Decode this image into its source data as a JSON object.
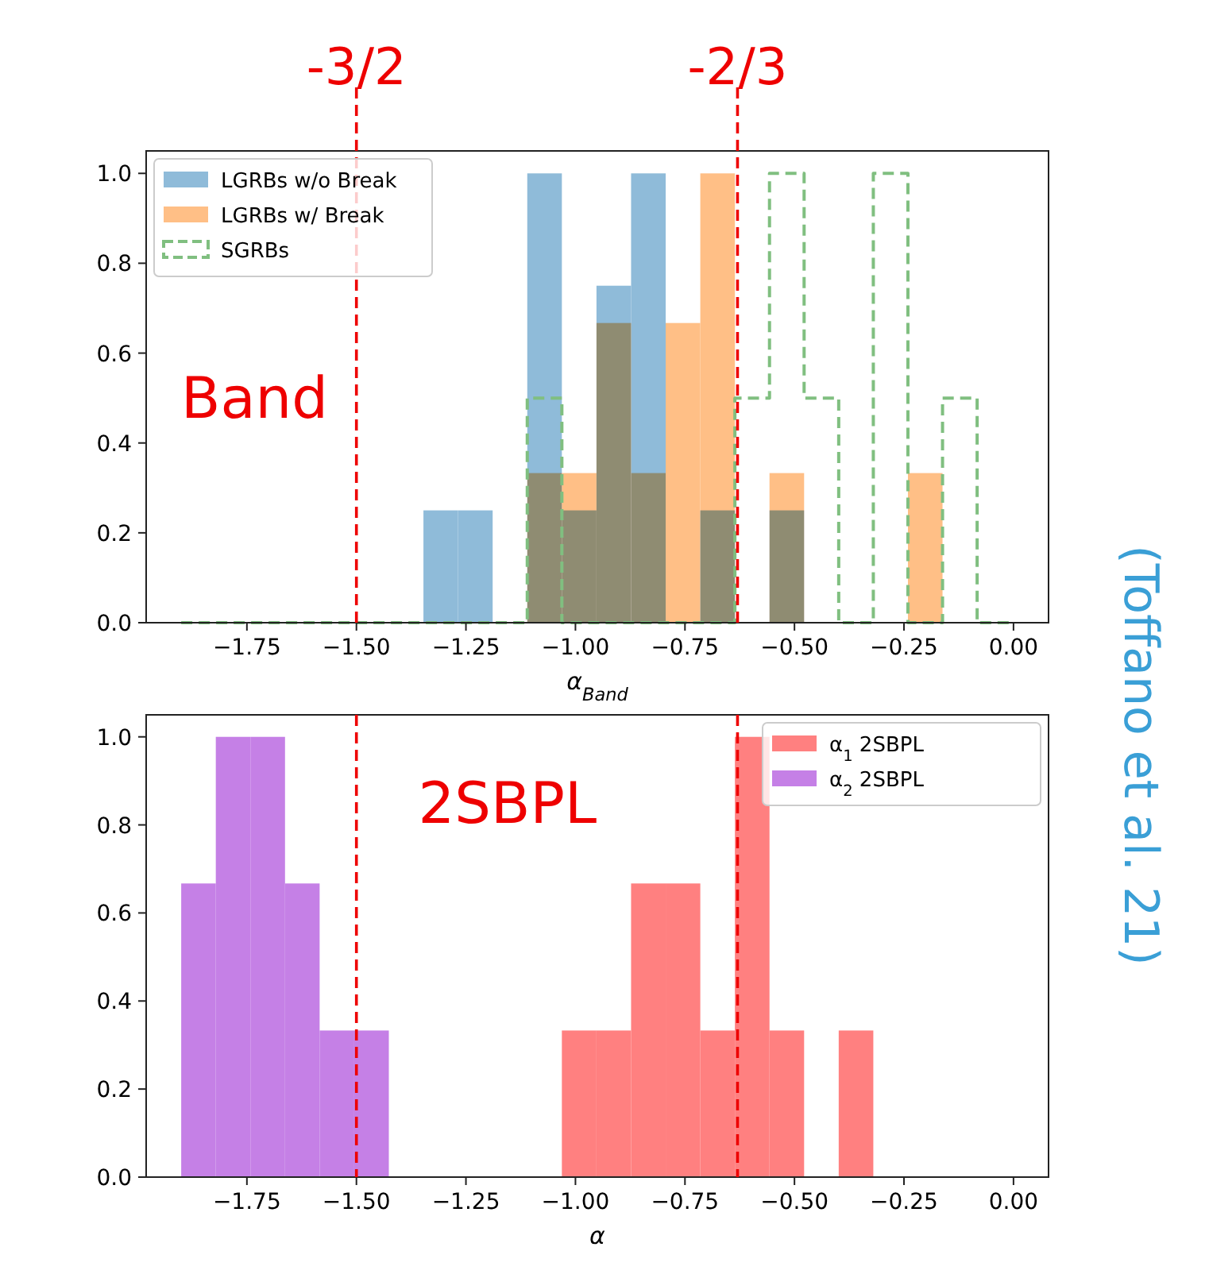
{
  "chart_data": [
    {
      "type": "histogram",
      "xlabel": "α$_{Band}$",
      "bins": [
        -1.9,
        -1.821,
        -1.742,
        -1.663,
        -1.584,
        -1.505,
        -1.426,
        -1.347,
        -1.268,
        -1.189,
        -1.11,
        -1.031,
        -0.952,
        -0.873,
        -0.794,
        -0.715,
        -0.636,
        -0.557,
        -0.478,
        -0.399,
        -0.32,
        -0.241,
        -0.162,
        -0.083,
        -0.004
      ],
      "series": [
        {
          "name": "LGRBs w/o Break",
          "color": "#8fbbd9",
          "values": [
            0,
            0,
            0,
            0,
            0,
            0,
            0,
            0.25,
            0.25,
            0,
            1.0,
            0.25,
            0.75,
            1.0,
            0,
            0.25,
            0,
            0.25,
            0,
            0,
            0,
            0,
            0,
            0
          ]
        },
        {
          "name": "LGRBs w/ Break",
          "color": "#ffbf86",
          "values": [
            0,
            0,
            0,
            0,
            0,
            0,
            0,
            0,
            0,
            0,
            0.333,
            0.333,
            0.667,
            0.333,
            0.667,
            1.0,
            0,
            0.333,
            0,
            0,
            0,
            0.333,
            0,
            0
          ]
        },
        {
          "name": "SGRBs",
          "color": "#80bf80",
          "line_style": "dashed",
          "values": [
            0,
            0,
            0,
            0,
            0,
            0,
            0,
            0,
            0,
            0,
            0.5,
            0,
            0,
            0,
            0,
            0,
            0.5,
            1.0,
            0.5,
            0,
            1.0,
            0,
            0.5,
            0
          ]
        }
      ],
      "xlim": [
        -1.98,
        0.08
      ],
      "ylim": [
        0,
        1.05
      ],
      "xticks": [
        {
          "value": -1.75,
          "label": "−1.75"
        },
        {
          "value": -1.5,
          "label": "−1.50"
        },
        {
          "value": -1.25,
          "label": "−1.25"
        },
        {
          "value": -1.0,
          "label": "−1.00"
        },
        {
          "value": -0.75,
          "label": "−0.75"
        },
        {
          "value": -0.5,
          "label": "−0.50"
        },
        {
          "value": -0.25,
          "label": "−0.25"
        },
        {
          "value": 0,
          "label": "0.00"
        }
      ],
      "yticks": [
        {
          "value": 0,
          "label": "0.0"
        },
        {
          "value": 0.2,
          "label": "0.2"
        },
        {
          "value": 0.4,
          "label": "0.4"
        },
        {
          "value": 0.6,
          "label": "0.6"
        },
        {
          "value": 0.8,
          "label": "0.8"
        },
        {
          "value": 1.0,
          "label": "1.0"
        }
      ],
      "ref_lines": [
        {
          "axis": "x",
          "value": -1.5,
          "color": "#ee0000",
          "line_style": "dashed"
        },
        {
          "axis": "x",
          "value": -0.63,
          "color": "#ee0000",
          "line_style": "dashed"
        }
      ],
      "annotations": [
        "Band",
        "-3/2",
        "-2/3"
      ],
      "legend": "top left",
      "grid": false
    },
    {
      "type": "histogram",
      "xlabel": "α",
      "bins": [
        -1.9,
        -1.821,
        -1.742,
        -1.663,
        -1.584,
        -1.505,
        -1.426,
        -1.347,
        -1.268,
        -1.189,
        -1.11,
        -1.031,
        -0.952,
        -0.873,
        -0.794,
        -0.715,
        -0.636,
        -0.557,
        -0.478,
        -0.399,
        -0.32,
        -0.241,
        -0.162,
        -0.083,
        -0.004
      ],
      "series": [
        {
          "name": "α$_{1}$ 2SBPL",
          "color": "#ff8080",
          "values": [
            0,
            0,
            0,
            0,
            0,
            0,
            0,
            0,
            0,
            0,
            0,
            0.333,
            0.333,
            0.667,
            0.667,
            0.333,
            1.0,
            0.333,
            0,
            0.333,
            0,
            0,
            0,
            0
          ]
        },
        {
          "name": "α$_{2}$ 2SBPL",
          "color": "#c580e6",
          "values": [
            0.667,
            1.0,
            1.0,
            0.667,
            0.333,
            0.333,
            0,
            0,
            0,
            0,
            0,
            0,
            0,
            0,
            0,
            0,
            0,
            0,
            0,
            0,
            0,
            0,
            0,
            0
          ]
        }
      ],
      "xlim": [
        -1.98,
        0.08
      ],
      "ylim": [
        0,
        1.05
      ],
      "xticks": [
        {
          "value": -1.75,
          "label": "−1.75"
        },
        {
          "value": -1.5,
          "label": "−1.50"
        },
        {
          "value": -1.25,
          "label": "−1.25"
        },
        {
          "value": -1.0,
          "label": "−1.00"
        },
        {
          "value": -0.75,
          "label": "−0.75"
        },
        {
          "value": -0.5,
          "label": "−0.50"
        },
        {
          "value": -0.25,
          "label": "−0.25"
        },
        {
          "value": 0,
          "label": "0.00"
        }
      ],
      "yticks": [
        {
          "value": 0,
          "label": "0.0"
        },
        {
          "value": 0.2,
          "label": "0.2"
        },
        {
          "value": 0.4,
          "label": "0.4"
        },
        {
          "value": 0.6,
          "label": "0.6"
        },
        {
          "value": 0.8,
          "label": "0.8"
        },
        {
          "value": 1.0,
          "label": "1.0"
        }
      ],
      "ref_lines": [
        {
          "axis": "x",
          "value": -1.5,
          "color": "#ee0000",
          "line_style": "dashed"
        },
        {
          "axis": "x",
          "value": -0.63,
          "color": "#ee0000",
          "line_style": "dashed"
        }
      ],
      "annotations": [
        "2SBPL",
        "(Toffano et al. 21)"
      ],
      "legend": "top right",
      "grid": false
    }
  ]
}
